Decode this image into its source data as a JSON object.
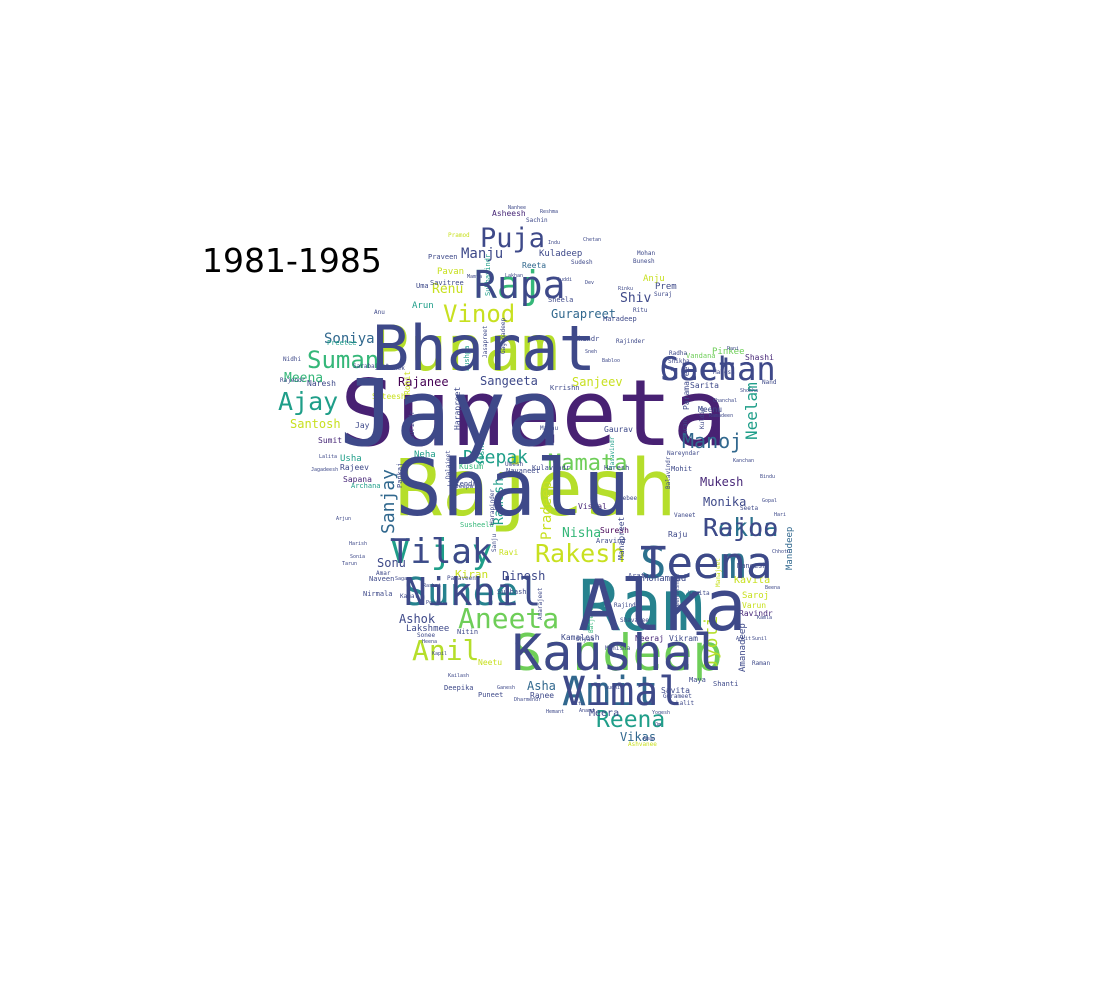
{
  "title": "1981-1985",
  "palette": [
    "#440154",
    "#482878",
    "#3e4989",
    "#31688e",
    "#26828e",
    "#1f9e89",
    "#35b779",
    "#6ece58",
    "#b5de2b",
    "#c8e020",
    "#fde725"
  ],
  "words": [
    {
      "text": "Suneeta",
      "color": "#482173"
    },
    {
      "text": "Rajesh",
      "color": "#b5de2b"
    },
    {
      "text": "Ram",
      "color": "#26828e"
    },
    {
      "text": "Punam",
      "color": "#b5de2b"
    },
    {
      "text": "Sandeep",
      "color": "#6ece58"
    },
    {
      "text": "Seema",
      "color": "#2c728e"
    },
    {
      "text": "Amit",
      "color": "#31688e"
    },
    {
      "text": "Suneel",
      "color": "#26828e"
    },
    {
      "text": "Raj",
      "color": "#35b779"
    },
    {
      "text": "Geeta",
      "color": "#3e4989"
    },
    {
      "text": "Vijay",
      "color": "#1f9e89"
    },
    {
      "text": "Rekha",
      "color": "#2c728e"
    },
    {
      "text": "Aneeta",
      "color": "#6ece58"
    },
    {
      "text": "Anil",
      "color": "#b5de2b"
    },
    {
      "text": "Rakesh",
      "color": "#c8e020"
    },
    {
      "text": "Reena",
      "color": "#1f9e89"
    },
    {
      "text": "Puja",
      "color": "#3e4989"
    },
    {
      "text": "Suman",
      "color": "#35b779"
    },
    {
      "text": "Ajay",
      "color": "#1f9e89"
    },
    {
      "text": "Vinod",
      "color": "#c8e020"
    },
    {
      "text": "Mamata",
      "color": "#6ece58"
    },
    {
      "text": "Manoj",
      "color": "#31688e"
    },
    {
      "text": "Deepak",
      "color": "#1f9e89"
    },
    {
      "text": "Sanjay",
      "color": "#31688e"
    },
    {
      "text": "Neelam",
      "color": "#1f9e89"
    },
    {
      "text": "Jyoti",
      "color": "#b5de2b"
    },
    {
      "text": "Ramesh",
      "color": "#1f9e89"
    },
    {
      "text": "Pradeep",
      "color": "#c8e020"
    },
    {
      "text": "Manju",
      "color": "#3e4989"
    },
    {
      "text": "Soniya",
      "color": "#31688e"
    },
    {
      "text": "Meena",
      "color": "#35b779"
    },
    {
      "text": "Shiv",
      "color": "#3e4989"
    },
    {
      "text": "Renu",
      "color": "#c8e020"
    },
    {
      "text": "Rajanee",
      "color": "#440154"
    },
    {
      "text": "Sangeeta",
      "color": "#3e4989"
    },
    {
      "text": "Sanjeev",
      "color": "#c8e020"
    },
    {
      "text": "Gurapreet",
      "color": "#31688e"
    },
    {
      "text": "Santosh",
      "color": "#c8e020"
    },
    {
      "text": "Mukesh",
      "color": "#482878"
    },
    {
      "text": "Monika",
      "color": "#3e4989"
    },
    {
      "text": "Nisha",
      "color": "#35b779"
    },
    {
      "text": "Dinesh",
      "color": "#3e4989"
    },
    {
      "text": "Kiran",
      "color": "#c8e020"
    },
    {
      "text": "Sonu",
      "color": "#3e4989"
    },
    {
      "text": "Ashok",
      "color": "#3e4989"
    },
    {
      "text": "Asha",
      "color": "#31688e"
    },
    {
      "text": "Vikas",
      "color": "#31688e"
    },
    {
      "text": "Meera",
      "color": "#3e4989"
    },
    {
      "text": "Kavita",
      "color": "#c8e020"
    },
    {
      "text": "Mohammad",
      "color": "#3e4989"
    },
    {
      "text": "Amanadeep",
      "color": "#3e4989"
    },
    {
      "text": "Manadeep",
      "color": "#31688e"
    },
    {
      "text": "Asheesh",
      "color": "#482878"
    },
    {
      "text": "Kuladeep",
      "color": "#3e4989"
    },
    {
      "text": "Pavan",
      "color": "#c8e020"
    },
    {
      "text": "Arun",
      "color": "#1f9e89"
    },
    {
      "text": "Anju",
      "color": "#c8e020"
    },
    {
      "text": "Prem",
      "color": "#3e4989"
    },
    {
      "text": "Reeta",
      "color": "#31688e"
    },
    {
      "text": "Pinkee",
      "color": "#6ece58"
    },
    {
      "text": "Shashi",
      "color": "#482878"
    },
    {
      "text": "Naresh",
      "color": "#3e4989"
    },
    {
      "text": "Sateesh",
      "color": "#c8e020"
    },
    {
      "text": "Rohit",
      "color": "#c8e020"
    },
    {
      "text": "Usha",
      "color": "#1f9e89"
    },
    {
      "text": "Rajeev",
      "color": "#3e4989"
    },
    {
      "text": "Sapana",
      "color": "#482878"
    },
    {
      "text": "Sumit",
      "color": "#482878"
    },
    {
      "text": "Jay",
      "color": "#3e4989"
    },
    {
      "text": "Neha",
      "color": "#1f9e89"
    },
    {
      "text": "Kusum",
      "color": "#35b779"
    },
    {
      "text": "Sushama",
      "color": "#1f9e89"
    },
    {
      "text": "Harapreet",
      "color": "#3e4989"
    },
    {
      "text": "Paramajeet",
      "color": "#3e4989"
    },
    {
      "text": "Vishal",
      "color": "#482878"
    },
    {
      "text": "Suresh",
      "color": "#440154"
    },
    {
      "text": "Raju",
      "color": "#3e4989"
    },
    {
      "text": "Vikram",
      "color": "#3e4989"
    },
    {
      "text": "Neeraj",
      "color": "#482878"
    },
    {
      "text": "Lakshmee",
      "color": "#3e4989"
    },
    {
      "text": "Neetu",
      "color": "#c8e020"
    },
    {
      "text": "Ranee",
      "color": "#3e4989"
    },
    {
      "text": "Kamalesh",
      "color": "#3e4989"
    },
    {
      "text": "Savita",
      "color": "#3e4989"
    },
    {
      "text": "Saroj",
      "color": "#c8e020"
    },
    {
      "text": "Varun",
      "color": "#c8e020"
    },
    {
      "text": "Ravindr",
      "color": "#482878"
    },
    {
      "text": "Gaurav",
      "color": "#3e4989"
    },
    {
      "text": "Meenu",
      "color": "#3e4989"
    },
    {
      "text": "Sarita",
      "color": "#3e4989"
    },
    {
      "text": "Vandana",
      "color": "#6ece58"
    },
    {
      "text": "Maya",
      "color": "#3e4989"
    },
    {
      "text": "Shanti",
      "color": "#3e4989"
    },
    {
      "text": "Manapreet",
      "color": "#3e4989"
    },
    {
      "text": "Surindr",
      "color": "#3e4989"
    },
    {
      "text": "Ravi",
      "color": "#c8e020"
    },
    {
      "text": "Subhash",
      "color": "#3e4989"
    },
    {
      "text": "Navaneet",
      "color": "#3e4989"
    },
    {
      "text": "Kulavindr",
      "color": "#3e4989"
    },
    {
      "text": "Haresh",
      "color": "#3e4989"
    },
    {
      "text": "Aravind",
      "color": "#3e4989"
    },
    {
      "text": "Aratee",
      "color": "#3e4989"
    },
    {
      "text": "Maneesh",
      "color": "#3e4989"
    },
    {
      "text": "Nitin",
      "color": "#3e4989"
    },
    {
      "text": "Deepika",
      "color": "#3e4989"
    },
    {
      "text": "Puneet",
      "color": "#3e4989"
    },
    {
      "text": "Chandr",
      "color": "#3e4989"
    },
    {
      "text": "Krrishn",
      "color": "#3e4989"
    },
    {
      "text": "Mohit",
      "color": "#3e4989"
    },
    {
      "text": "Naveen",
      "color": "#3e4989"
    },
    {
      "text": "Nirmala",
      "color": "#3e4989"
    },
    {
      "text": "Archana",
      "color": "#1f9e89"
    },
    {
      "text": "Pankaj",
      "color": "#3e4989"
    },
    {
      "text": "Jitendr",
      "color": "#3e4989"
    },
    {
      "text": "Pushpa",
      "color": "#1f9e89"
    },
    {
      "text": "Sheela",
      "color": "#3e4989"
    },
    {
      "text": "Haradeep",
      "color": "#3e4989"
    },
    {
      "text": "Praveen",
      "color": "#3e4989"
    },
    {
      "text": "Savitree",
      "color": "#3e4989"
    },
    {
      "text": "Uma",
      "color": "#3e4989"
    },
    {
      "text": "Preetee",
      "color": "#1f9e89"
    },
    {
      "text": "Nidhi",
      "color": "#3e4989"
    },
    {
      "text": "Rajendr",
      "color": "#3e4989"
    },
    {
      "text": "Radha",
      "color": "#3e4989"
    },
    {
      "text": "Shikha",
      "color": "#3e4989"
    },
    {
      "text": "Ritu",
      "color": "#3e4989"
    },
    {
      "text": "Suraj",
      "color": "#3e4989"
    },
    {
      "text": "Madhu",
      "color": "#3e4989"
    },
    {
      "text": "Deepa",
      "color": "#3e4989"
    },
    {
      "text": "Umesh",
      "color": "#3e4989"
    },
    {
      "text": "Susheela",
      "color": "#35b779"
    },
    {
      "text": "Sukhavindr",
      "color": "#1f9e89"
    },
    {
      "text": "Abhishek",
      "color": "#3e4989"
    },
    {
      "text": "Sarabajeet",
      "color": "#3e4989"
    },
    {
      "text": "Shyam",
      "color": "#3e4989"
    },
    {
      "text": "Bebee",
      "color": "#3e4989"
    },
    {
      "text": "Gurameet",
      "color": "#3e4989"
    },
    {
      "text": "Lalit",
      "color": "#3e4989"
    },
    {
      "text": "Ashvanee",
      "color": "#c8e020"
    },
    {
      "text": "Raman",
      "color": "#3e4989"
    },
    {
      "text": "Seeta",
      "color": "#3e4989"
    },
    {
      "text": "Sonee",
      "color": "#3e4989"
    },
    {
      "text": "Kamal",
      "color": "#3e4989"
    },
    {
      "text": "Amar",
      "color": "#3e4989"
    },
    {
      "text": "Sachin",
      "color": "#3e4989"
    },
    {
      "text": "Pramod",
      "color": "#c8e020"
    },
    {
      "text": "Sudesh",
      "color": "#3e4989"
    },
    {
      "text": "Mohan",
      "color": "#3e4989"
    },
    {
      "text": "Bunesh",
      "color": "#3e4989"
    },
    {
      "text": "Mahesh",
      "color": "#3e4989"
    },
    {
      "text": "Nand",
      "color": "#3e4989"
    },
    {
      "text": "Anu",
      "color": "#3e4989"
    },
    {
      "text": "Manisha",
      "color": "#3e4989"
    },
    {
      "text": "Sanju",
      "color": "#3e4989"
    },
    {
      "text": "Rajinder",
      "color": "#3e4989"
    },
    {
      "text": "Gaganadeep",
      "color": "#3e4989"
    },
    {
      "text": "Jasapreet",
      "color": "#3e4989"
    },
    {
      "text": "Jasavindr",
      "color": "#1f9e89"
    },
    {
      "text": "Amarajeet",
      "color": "#3e4989"
    },
    {
      "text": "Baljeet",
      "color": "#35b779"
    },
    {
      "text": "Dalajeet",
      "color": "#3e4989"
    },
    {
      "text": "Paraveen",
      "color": "#3e4989"
    },
    {
      "text": "Rajindr",
      "color": "#3e4989"
    },
    {
      "text": "Shavanee",
      "color": "#3e4989"
    },
    {
      "text": "Harapinder",
      "color": "#3e4989"
    },
    {
      "text": "Nareyndar",
      "color": "#3e4989"
    },
    {
      "text": "Manajeet",
      "color": "#c8e020"
    },
    {
      "text": "Meenakshee",
      "color": "#3e4989"
    },
    {
      "text": "Karan",
      "color": "#3e4989"
    },
    {
      "text": "Kuldip",
      "color": "#3e4989"
    },
    {
      "text": "Balavindr",
      "color": "#3e4989"
    },
    {
      "text": "Vaneet",
      "color": "#3e4989"
    },
    {
      "text": "Vanita",
      "color": "#3e4989"
    },
    {
      "text": "Kanchan",
      "color": "#3e4989"
    },
    {
      "text": "Chanchal",
      "color": "#3e4989"
    },
    {
      "text": "Ramadeen",
      "color": "#3e4989"
    },
    {
      "text": "Lalita",
      "color": "#3e4989"
    },
    {
      "text": "Jagadeesh",
      "color": "#3e4989"
    },
    {
      "text": "Arjun",
      "color": "#3e4989"
    },
    {
      "text": "Harish",
      "color": "#3e4989"
    },
    {
      "text": "Sonia",
      "color": "#3e4989"
    },
    {
      "text": "Tarun",
      "color": "#3e4989"
    },
    {
      "text": "Sagar",
      "color": "#3e4989"
    },
    {
      "text": "Rashmi",
      "color": "#3e4989"
    },
    {
      "text": "Pooja",
      "color": "#3e4989"
    },
    {
      "text": "Heena",
      "color": "#3e4989"
    },
    {
      "text": "Kapil",
      "color": "#3e4989"
    },
    {
      "text": "Kailash",
      "color": "#3e4989"
    },
    {
      "text": "Ganesh",
      "color": "#3e4989"
    },
    {
      "text": "Dharmendr",
      "color": "#3e4989"
    },
    {
      "text": "Nitu",
      "color": "#3e4989"
    },
    {
      "text": "Anand",
      "color": "#3e4989"
    },
    {
      "text": "Hemant",
      "color": "#3e4989"
    },
    {
      "text": "Sudhir",
      "color": "#3e4989"
    },
    {
      "text": "Yogesh",
      "color": "#3e4989"
    },
    {
      "text": "Om",
      "color": "#3e4989"
    },
    {
      "text": "Aman",
      "color": "#3e4989"
    },
    {
      "text": "Ankit",
      "color": "#3e4989"
    },
    {
      "text": "Sunil",
      "color": "#3e4989"
    },
    {
      "text": "Kamla",
      "color": "#3e4989"
    },
    {
      "text": "Beena",
      "color": "#3e4989"
    },
    {
      "text": "Chhotu",
      "color": "#3e4989"
    },
    {
      "text": "Hari",
      "color": "#3e4989"
    },
    {
      "text": "Gopal",
      "color": "#3e4989"
    },
    {
      "text": "Bindu",
      "color": "#3e4989"
    },
    {
      "text": "Shobha",
      "color": "#3e4989"
    },
    {
      "text": "Rani",
      "color": "#3e4989"
    },
    {
      "text": "Sneh",
      "color": "#3e4989"
    },
    {
      "text": "Babloo",
      "color": "#3e4989"
    },
    {
      "text": "Rinku",
      "color": "#3e4989"
    },
    {
      "text": "Dev",
      "color": "#3e4989"
    },
    {
      "text": "Guddi",
      "color": "#3e4989"
    },
    {
      "text": "Lakhan",
      "color": "#3e4989"
    },
    {
      "text": "Mamta",
      "color": "#3e4989"
    },
    {
      "text": "Reshma",
      "color": "#3e4989"
    },
    {
      "text": "Nanhee",
      "color": "#3e4989"
    },
    {
      "text": "Chetan",
      "color": "#3e4989"
    },
    {
      "text": "Indu",
      "color": "#3e4989"
    },
    {
      "text": "Jaya",
      "color": "#3e4989"
    },
    {
      "text": "Shalu",
      "color": "#3e4989"
    },
    {
      "text": "Alka",
      "color": "#3e4989"
    },
    {
      "text": "Bharat",
      "color": "#3e4989"
    },
    {
      "text": "Kaushal",
      "color": "#3e4989"
    },
    {
      "text": "Teena",
      "color": "#3e4989"
    },
    {
      "text": "Vimal",
      "color": "#3e4989"
    },
    {
      "text": "Nikhil",
      "color": "#3e4989"
    },
    {
      "text": "Rupa",
      "color": "#3e4989"
    },
    {
      "text": "Sachan",
      "color": "#3e4989"
    },
    {
      "text": "Tilak",
      "color": "#3e4989"
    },
    {
      "text": "Rajoo",
      "color": "#3e4989"
    }
  ]
}
